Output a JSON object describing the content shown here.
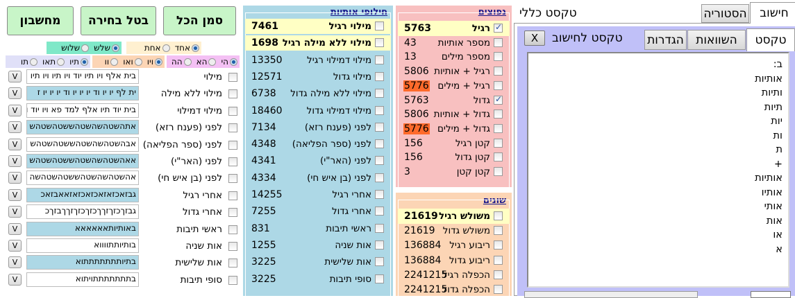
{
  "buttons": {
    "calculator": "מחשבון",
    "clear_selection": "בטל בחירה",
    "select_all": "סמן הכל"
  },
  "radio_groups": [
    {
      "color": "#7fe8c8",
      "options": [
        "שלש",
        "שלוש"
      ],
      "selected": 0
    },
    {
      "color": "#fff0d0",
      "options": [
        "אחד",
        "אחת"
      ],
      "selected": 0
    },
    {
      "color": "#e0e0f8",
      "options": [
        "תיו",
        "תאו",
        "תו"
      ],
      "selected": 0
    },
    {
      "color": "#fcd5b5",
      "options": [
        "ויו",
        "ואו",
        "וו"
      ],
      "selected": 0
    },
    {
      "color": "#f4c0f4",
      "options": [
        "הי",
        "הא",
        "הה"
      ],
      "selected": 0
    }
  ],
  "left_rows": [
    {
      "label": "מילוי",
      "value": "בית אלף ויו תיו יוד ויו תיו ויו תיו"
    },
    {
      "label": "מילוי ללא מילה",
      "value": "ית לף יו יו וד יו יו יו וד יו יו יו ז"
    },
    {
      "label": "מילוי דמילוי",
      "value": "בית יוד תיו אלף למד פא ויו יוד ו"
    },
    {
      "label": "לפני (פענח רזא)",
      "value": "אתהשטהשהשטהששטהשטהש"
    },
    {
      "label": "לפני (ספר הפליאה)",
      "value": "אבהשטהשהשטהששטהשטהש"
    },
    {
      "label": "לפני (האר\"י)",
      "value": "אאהשטהשהשטהששטהשטהש"
    },
    {
      "label": "לפני (בן איש חי)",
      "value": "אהשטהשהשטהששטהשטהשה"
    },
    {
      "label": "אחרי רגיל",
      "value": "גבזאכזאזאכזאכזאזאאבזאכ"
    },
    {
      "label": "אחרי גדול",
      "value": "גבזךכזךזךךכזךכזךזךךבזךכ"
    },
    {
      "label": "ראשי תיבות",
      "value": "באותיותאאאאאא"
    },
    {
      "label": "אות שניה",
      "value": "בותיותתווווא"
    },
    {
      "label": "אות שלישית",
      "value": "בתיותתתתתתתוא"
    },
    {
      "label": "סופי תיבות",
      "value": "בתתתתתתתויתוא"
    }
  ],
  "v_button_label": "V",
  "letter_swaps": {
    "title": "חילופי אותיות",
    "bg": "#add8e6",
    "rows": [
      {
        "label": "מילוי רגיל",
        "value": "7461",
        "highlight": true
      },
      {
        "label": "מילוי ללא מילה רגיל",
        "value": "1698",
        "highlight": true
      },
      {
        "label": "מילוי דמילוי רגיל",
        "value": "13350"
      },
      {
        "label": "מילוי גדול",
        "value": "12571"
      },
      {
        "label": "מילוי ללא מילה גדול",
        "value": "6738"
      },
      {
        "label": "מילוי דמילוי גדול",
        "value": "18460"
      },
      {
        "label": "לפני (פענח רזא)",
        "value": "7134"
      },
      {
        "label": "לפני (ספר הפליאה)",
        "value": "4348"
      },
      {
        "label": "לפני (האר\"י)",
        "value": "4341"
      },
      {
        "label": "לפני (בן איש חי)",
        "value": "4334"
      },
      {
        "label": "אחרי רגיל",
        "value": "14255"
      },
      {
        "label": "אחרי גדול",
        "value": "7255"
      },
      {
        "label": "ראשי תיבות",
        "value": "831"
      },
      {
        "label": "אות שניה",
        "value": "1255"
      },
      {
        "label": "אות שלישית",
        "value": "3225"
      },
      {
        "label": "סופי תיבות",
        "value": "3225"
      }
    ]
  },
  "common": {
    "title": "נפוצים",
    "bg": "#f8c0c0",
    "rows": [
      {
        "label": "רגיל",
        "value": "5763",
        "checked": true,
        "highlight": true
      },
      {
        "label": "מספר אותיות",
        "value": "43"
      },
      {
        "label": "מספר מילים",
        "value": "13"
      },
      {
        "label": "רגיל + אותיות",
        "value": "5806"
      },
      {
        "label": "רגיל + מילים",
        "value": "5776",
        "orange": true
      },
      {
        "label": "גדול",
        "value": "5763",
        "checked": true
      },
      {
        "label": "גדול + אותיות",
        "value": "5806"
      },
      {
        "label": "גדול + מילים",
        "value": "5776",
        "orange": true
      },
      {
        "label": "קטן רגיל",
        "value": "156"
      },
      {
        "label": "קטן גדול",
        "value": "156"
      },
      {
        "label": "קטן קטן",
        "value": "3"
      }
    ]
  },
  "misc": {
    "title": "שונים",
    "bg": "#fcd5b5",
    "rows": [
      {
        "label": "משולש רגיל",
        "value": "21619",
        "highlight": true
      },
      {
        "label": "משולש גדול",
        "value": "21619"
      },
      {
        "label": "ריבוע רגיל",
        "value": "136884"
      },
      {
        "label": "ריבוע גדול",
        "value": "136884"
      },
      {
        "label": "הכפלה רגיל",
        "value": "2241215"
      },
      {
        "label": "הכפלה גדול",
        "value": "2241215"
      }
    ]
  },
  "right": {
    "tabs": [
      {
        "label": "חישוב",
        "active": true
      },
      {
        "label": "הסטוריה"
      }
    ],
    "general_text": "טקסט כללי",
    "inner_tabs": [
      {
        "label": "טקסט",
        "active": true
      },
      {
        "label": "השוואות"
      },
      {
        "label": "הגדרות"
      }
    ],
    "text_title": "טקסט לחישוב",
    "close_label": "X",
    "text_lines": [
      "ב:",
      "אותיות",
      "ותיות",
      "תיות",
      "יות",
      "ות",
      "ת",
      "+",
      "אותיות",
      "אותיו",
      "אותי",
      "אות",
      "או",
      "א"
    ],
    "panel_bg": "#c0c0f8"
  },
  "colors": {
    "highlight_row": "#ffffc4",
    "orange_value": "#ff6a2a",
    "button_green": "#c8f5c8"
  }
}
